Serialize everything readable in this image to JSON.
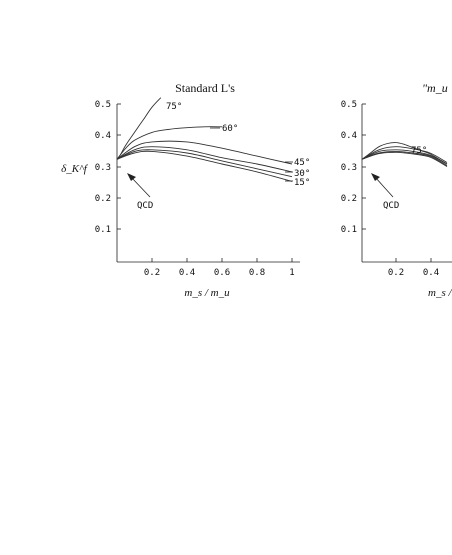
{
  "chart_data": [
    {
      "type": "line",
      "title": "Standard L's",
      "xlabel": "m_s / m_u",
      "ylabel": "δ_K^f",
      "xlim": [
        0,
        1.1
      ],
      "ylim": [
        0,
        0.5
      ],
      "x_ticks": [
        "0.2",
        "0.4",
        "0.6",
        "0.8",
        "1"
      ],
      "y_ticks": [
        "0.5",
        "0.4",
        "0.3",
        "0.2",
        "0.1"
      ],
      "grid": false,
      "annotations": [
        "QCD"
      ],
      "series": [
        {
          "name": "75°",
          "x": [
            0.0,
            0.02,
            0.05,
            0.1,
            0.15,
            0.2,
            0.25
          ],
          "y": [
            0.325,
            0.34,
            0.37,
            0.41,
            0.45,
            0.49,
            0.52
          ]
        },
        {
          "name": "60°",
          "x": [
            0.0,
            0.05,
            0.1,
            0.2,
            0.3,
            0.4,
            0.5,
            0.6
          ],
          "y": [
            0.325,
            0.36,
            0.385,
            0.41,
            0.42,
            0.425,
            0.428,
            0.428
          ]
        },
        {
          "name": "45°",
          "x": [
            0.0,
            0.1,
            0.2,
            0.4,
            0.6,
            0.8,
            1.0
          ],
          "y": [
            0.325,
            0.365,
            0.38,
            0.38,
            0.36,
            0.335,
            0.31
          ]
        },
        {
          "name": "30°",
          "x": [
            0.0,
            0.1,
            0.2,
            0.4,
            0.6,
            0.8,
            1.0
          ],
          "y": [
            0.325,
            0.355,
            0.365,
            0.355,
            0.33,
            0.31,
            0.285
          ]
        },
        {
          "name": "15°",
          "x": [
            0.0,
            0.1,
            0.2,
            0.4,
            0.6,
            0.8,
            1.0
          ],
          "y": [
            0.325,
            0.35,
            0.355,
            0.345,
            0.32,
            0.295,
            0.27
          ]
        },
        {
          "name": "QCD",
          "x": [
            0.0,
            0.1,
            0.2,
            0.4,
            0.6,
            0.8,
            1.0
          ],
          "y": [
            0.325,
            0.345,
            0.35,
            0.335,
            0.31,
            0.285,
            0.255
          ]
        }
      ]
    },
    {
      "type": "line",
      "title": "\"m_u =",
      "xlabel": "m_s / r",
      "ylabel": "",
      "xlim": [
        0,
        0.5
      ],
      "ylim": [
        0,
        0.5
      ],
      "x_ticks": [
        "0.2",
        "0.4"
      ],
      "y_ticks": [
        "0.5",
        "0.4",
        "0.3",
        "0.2",
        "0.1"
      ],
      "grid": false,
      "annotations": [
        "QCD"
      ],
      "series": [
        {
          "name": "75°",
          "x": [
            0.0,
            0.05,
            0.1,
            0.15,
            0.2,
            0.25,
            0.3,
            0.35,
            0.4,
            0.5
          ],
          "y": [
            0.325,
            0.345,
            0.365,
            0.375,
            0.378,
            0.372,
            0.362,
            0.352,
            0.342,
            0.31
          ]
        },
        {
          "name": "",
          "x": [
            0.0,
            0.1,
            0.2,
            0.3,
            0.4,
            0.5
          ],
          "y": [
            0.325,
            0.355,
            0.365,
            0.358,
            0.345,
            0.315
          ]
        },
        {
          "name": "",
          "x": [
            0.0,
            0.1,
            0.2,
            0.3,
            0.4,
            0.5
          ],
          "y": [
            0.325,
            0.35,
            0.355,
            0.35,
            0.338,
            0.31
          ]
        },
        {
          "name": "",
          "x": [
            0.0,
            0.1,
            0.2,
            0.3,
            0.4,
            0.5
          ],
          "y": [
            0.325,
            0.345,
            0.35,
            0.345,
            0.335,
            0.305
          ]
        },
        {
          "name": "QCD",
          "x": [
            0.0,
            0.1,
            0.2,
            0.3,
            0.4,
            0.5
          ],
          "y": [
            0.325,
            0.343,
            0.347,
            0.342,
            0.332,
            0.302
          ]
        }
      ]
    }
  ]
}
